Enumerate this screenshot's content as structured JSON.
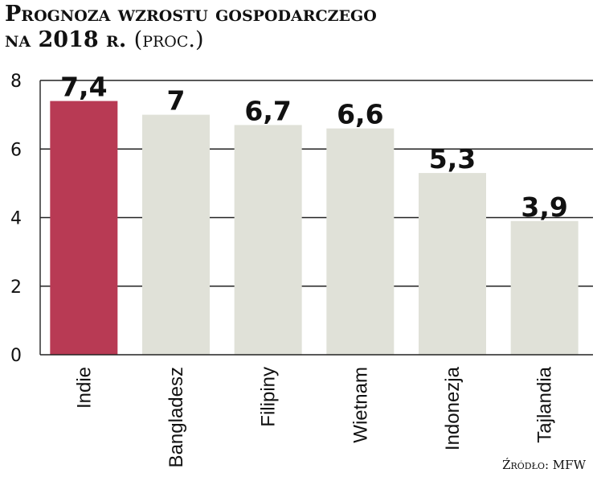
{
  "title": {
    "line1": "Prognoza wzrostu gospodarczego",
    "line2": "na 2018 r.",
    "unit": "(proc.)"
  },
  "source": "Źródło: MFW",
  "colors": {
    "highlight": "#b83a54",
    "bar": "#e0e1d8",
    "grid": "#222222"
  },
  "chart_data": {
    "type": "bar",
    "title": "Prognoza wzrostu gospodarczego na 2018 r. (proc.)",
    "categories": [
      "Indie",
      "Bangladesz",
      "Filipiny",
      "Wietnam",
      "Indonezja",
      "Tajlandia"
    ],
    "values": [
      7.4,
      7,
      6.7,
      6.6,
      5.3,
      3.9
    ],
    "value_labels": [
      "7,4",
      "7",
      "6,7",
      "6,6",
      "5,3",
      "3,9"
    ],
    "highlight_index": 0,
    "ylim": [
      0,
      8
    ],
    "yticks": [
      0,
      2,
      4,
      6,
      8
    ],
    "xlabel": "",
    "ylabel": "",
    "grid": true,
    "legend": "none"
  }
}
